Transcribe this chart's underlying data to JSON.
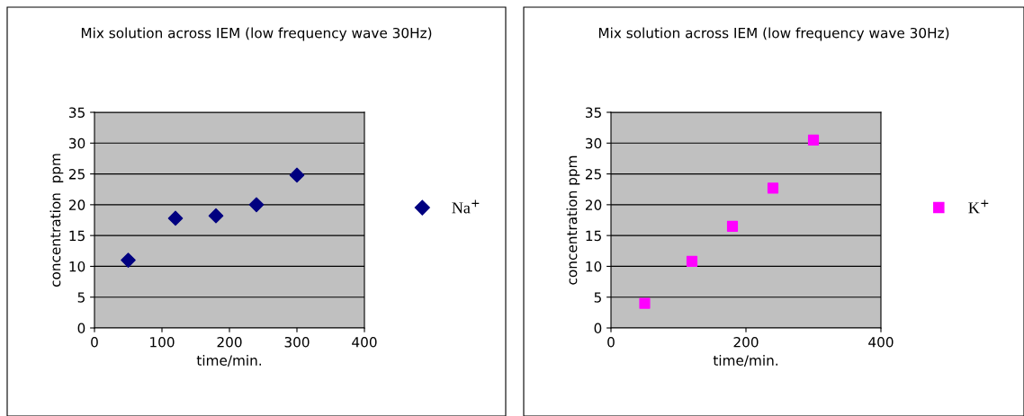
{
  "chart_data": [
    {
      "type": "scatter",
      "title": "Mix solution across IEM (low frequency wave 30Hz)",
      "xlabel": "time/min.",
      "ylabel": "concentration  ppm",
      "x": [
        50,
        120,
        180,
        240,
        300
      ],
      "xlim": [
        0,
        400
      ],
      "xticks": [
        0,
        100,
        200,
        300,
        400
      ],
      "ylim": [
        0,
        35
      ],
      "yticks": [
        0,
        5,
        10,
        15,
        20,
        25,
        30,
        35
      ],
      "grid": "y",
      "legend": "right",
      "marker": "diamond",
      "series": [
        {
          "name": "Na$^{+}$",
          "color": "#000080",
          "values": [
            11,
            17.8,
            18.2,
            20,
            24.8
          ]
        }
      ]
    },
    {
      "type": "scatter",
      "title": "Mix solution across IEM (low frequency wave 30Hz)",
      "xlabel": "time/min.",
      "ylabel": "concentration ppm",
      "x": [
        50,
        120,
        180,
        240,
        300
      ],
      "xlim": [
        0,
        400
      ],
      "xticks": [
        0,
        200,
        400
      ],
      "ylim": [
        0,
        35
      ],
      "yticks": [
        0,
        5,
        10,
        15,
        20,
        25,
        30,
        35
      ],
      "grid": "y",
      "legend": "right",
      "marker": "square",
      "series": [
        {
          "name": "K$^{+}$",
          "color": "#ff00ff",
          "values": [
            4,
            10.8,
            16.5,
            22.7,
            30.5
          ]
        }
      ]
    }
  ]
}
